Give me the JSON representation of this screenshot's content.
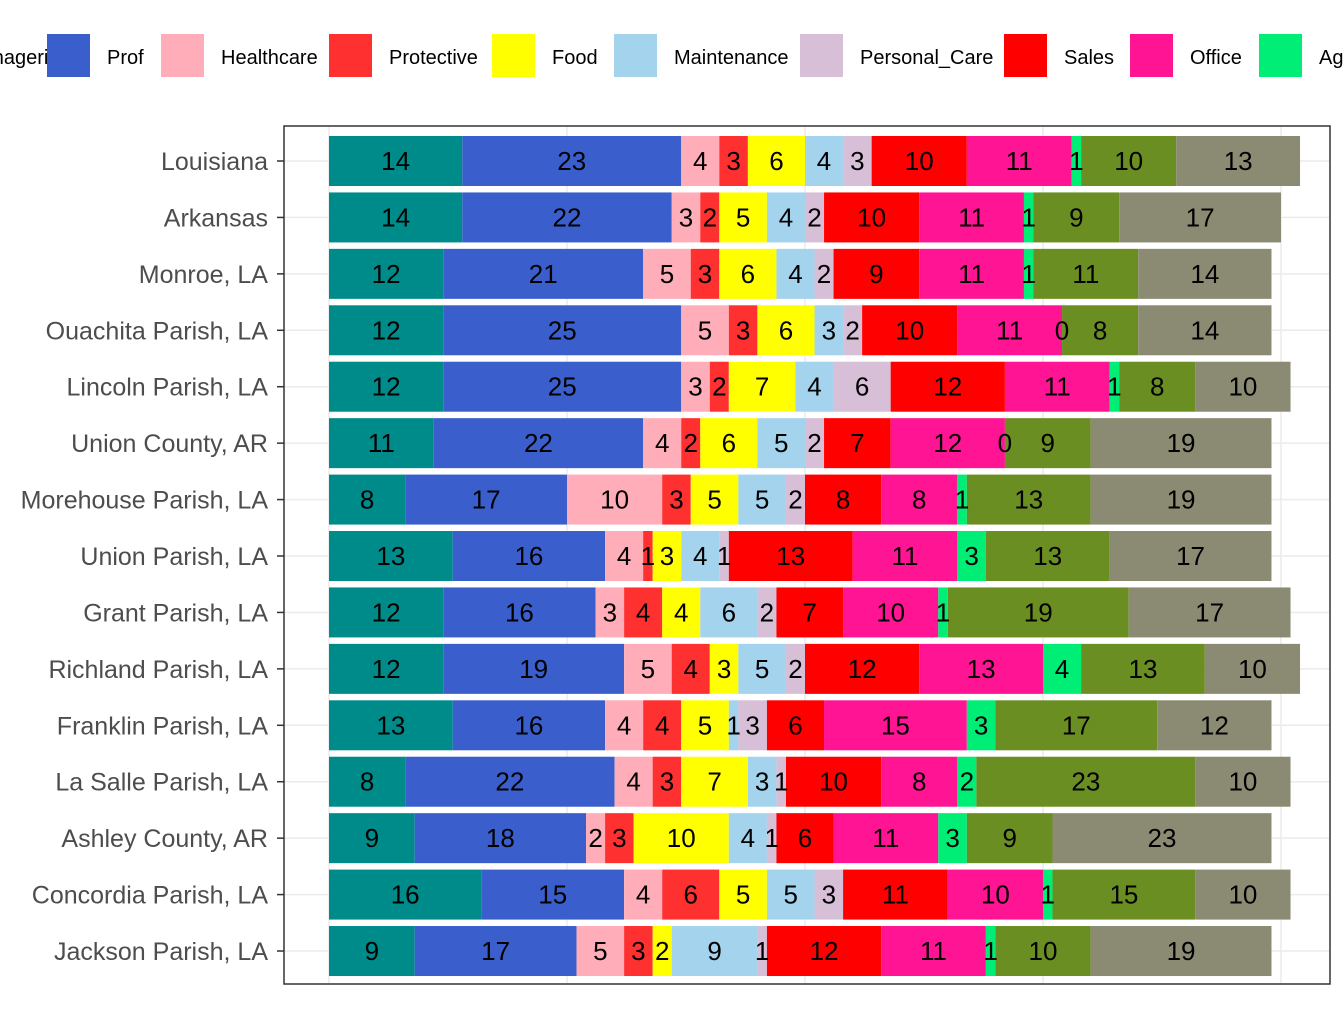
{
  "chart_data": {
    "type": "bar",
    "orientation": "horizontal",
    "stacked": true,
    "title": "",
    "xlabel": "",
    "ylabel": "",
    "xlim": [
      0,
      100
    ],
    "grid": true,
    "legend_position": "top",
    "categories": [
      "Louisiana",
      "Arkansas",
      "Monroe, LA",
      "Ouachita Parish, LA",
      "Lincoln Parish, LA",
      "Union County, AR",
      "Morehouse Parish, LA",
      "Union Parish, LA",
      "Grant Parish, LA",
      "Richland Parish, LA",
      "Franklin Parish, LA",
      "La Salle Parish, LA",
      "Ashley County, AR",
      "Concordia Parish, LA",
      "Jackson Parish, LA"
    ],
    "series": [
      {
        "name": "Managerial",
        "color": "#008B8B",
        "values": [
          14,
          14,
          12,
          12,
          12,
          11,
          8,
          13,
          12,
          12,
          13,
          8,
          9,
          16,
          9
        ]
      },
      {
        "name": "Prof",
        "color": "#3A5FCD",
        "values": [
          23,
          22,
          21,
          25,
          25,
          22,
          17,
          16,
          16,
          19,
          16,
          22,
          18,
          15,
          17
        ]
      },
      {
        "name": "Healthcare",
        "color": "#FFAEB9",
        "values": [
          4,
          3,
          5,
          5,
          3,
          4,
          10,
          4,
          3,
          5,
          4,
          4,
          2,
          4,
          5
        ]
      },
      {
        "name": "Protective",
        "color": "#FF3030",
        "values": [
          3,
          2,
          3,
          3,
          2,
          2,
          3,
          1,
          4,
          4,
          4,
          3,
          3,
          6,
          3
        ]
      },
      {
        "name": "Food",
        "color": "#FFFF00",
        "values": [
          6,
          5,
          6,
          6,
          7,
          6,
          5,
          3,
          4,
          3,
          5,
          7,
          10,
          5,
          2
        ]
      },
      {
        "name": "Maintenance",
        "color": "#A4D3EE",
        "values": [
          4,
          4,
          4,
          3,
          4,
          5,
          5,
          4,
          6,
          5,
          1,
          3,
          4,
          5,
          9
        ]
      },
      {
        "name": "Personal_Care",
        "color": "#D8BFD8",
        "values": [
          3,
          2,
          2,
          2,
          6,
          2,
          2,
          1,
          2,
          2,
          3,
          1,
          1,
          3,
          1
        ]
      },
      {
        "name": "Sales",
        "color": "#FF0000",
        "values": [
          10,
          10,
          9,
          10,
          12,
          7,
          8,
          13,
          7,
          12,
          6,
          10,
          6,
          11,
          12
        ]
      },
      {
        "name": "Office",
        "color": "#FF1493",
        "values": [
          11,
          11,
          11,
          11,
          11,
          12,
          8,
          11,
          10,
          13,
          15,
          8,
          11,
          10,
          11
        ]
      },
      {
        "name": "Ag",
        "color": "#00EE76",
        "values": [
          1,
          1,
          1,
          0,
          1,
          0,
          1,
          3,
          1,
          4,
          3,
          2,
          3,
          1,
          1
        ]
      },
      {
        "name": "",
        "color": "#6B8E23",
        "values": [
          10,
          9,
          11,
          8,
          8,
          9,
          13,
          13,
          19,
          13,
          17,
          23,
          9,
          15,
          10
        ]
      },
      {
        "name": "",
        "color": "#8B8B73",
        "values": [
          13,
          17,
          14,
          14,
          10,
          19,
          19,
          17,
          17,
          10,
          12,
          10,
          23,
          10,
          19
        ]
      }
    ]
  }
}
